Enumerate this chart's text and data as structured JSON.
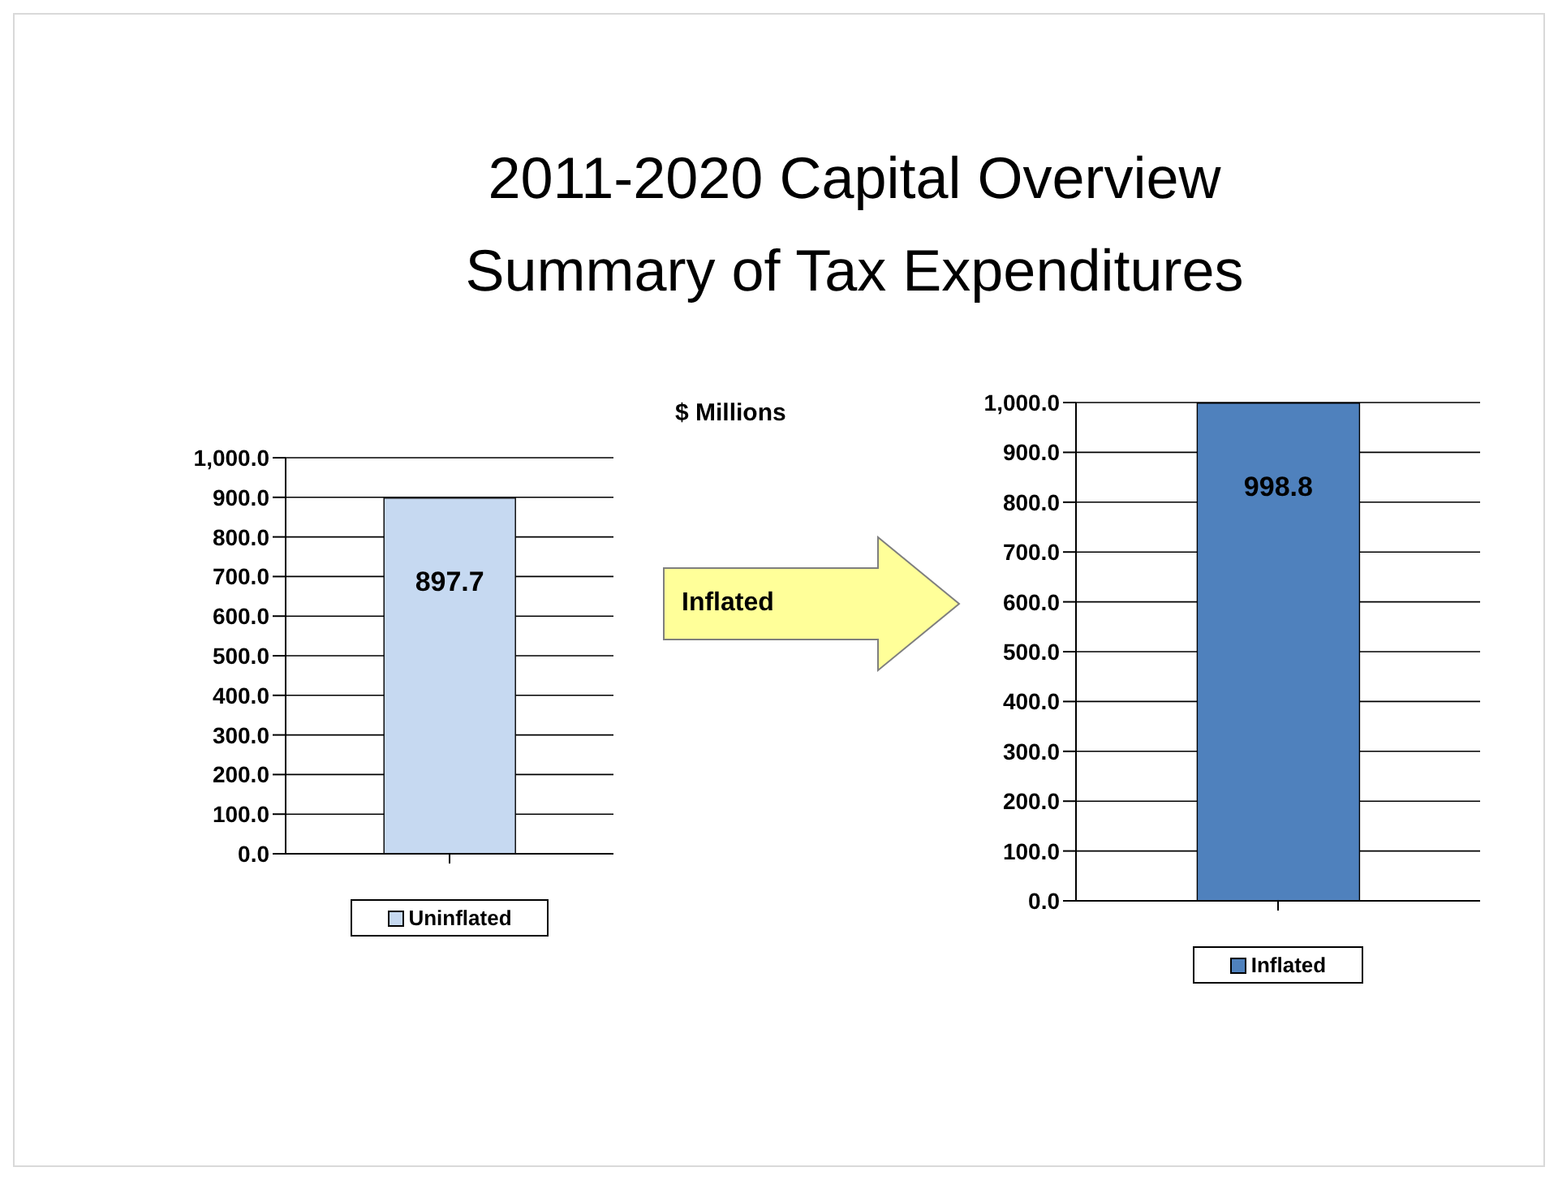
{
  "chart_data": [
    {
      "type": "bar",
      "title": "2011-2020 Capital Overview",
      "subtitle": "Summary of Tax Expenditures",
      "categories": [
        null
      ],
      "series": [
        {
          "name": "Uninflated",
          "color": "#c6d9f1",
          "values": [
            897.7
          ]
        }
      ],
      "ylim": [
        0,
        1000
      ],
      "yticks": [
        {
          "value": 0,
          "label": "0.0"
        },
        {
          "value": 100,
          "label": "100.0"
        },
        {
          "value": 200,
          "label": "200.0"
        },
        {
          "value": 300,
          "label": "300.0"
        },
        {
          "value": 400,
          "label": "400.0"
        },
        {
          "value": 500,
          "label": "500.0"
        },
        {
          "value": 600,
          "label": "600.0"
        },
        {
          "value": 700,
          "label": "700.0"
        },
        {
          "value": 800,
          "label": "800.0"
        },
        {
          "value": 900,
          "label": "900.0"
        },
        {
          "value": 1000,
          "label": "1,000.0"
        }
      ],
      "grid": "y",
      "legend": "bottom",
      "data_labels": true,
      "annotations": [
        "$ Millions"
      ]
    },
    {
      "type": "bar",
      "categories": [
        null
      ],
      "series": [
        {
          "name": "Inflated",
          "color": "#4f81bd",
          "values": [
            998.8
          ]
        }
      ],
      "ylim": [
        0,
        1000
      ],
      "yticks": [
        {
          "value": 0,
          "label": "0.0"
        },
        {
          "value": 100,
          "label": "100.0"
        },
        {
          "value": 200,
          "label": "200.0"
        },
        {
          "value": 300,
          "label": "300.0"
        },
        {
          "value": 400,
          "label": "400.0"
        },
        {
          "value": 500,
          "label": "500.0"
        },
        {
          "value": 600,
          "label": "600.0"
        },
        {
          "value": 700,
          "label": "700.0"
        },
        {
          "value": 800,
          "label": "800.0"
        },
        {
          "value": 900,
          "label": "900.0"
        },
        {
          "value": 1000,
          "label": "1,000.0"
        }
      ],
      "grid": "y",
      "legend": "bottom",
      "data_labels": true,
      "annotations": [
        "Inflated"
      ]
    }
  ]
}
